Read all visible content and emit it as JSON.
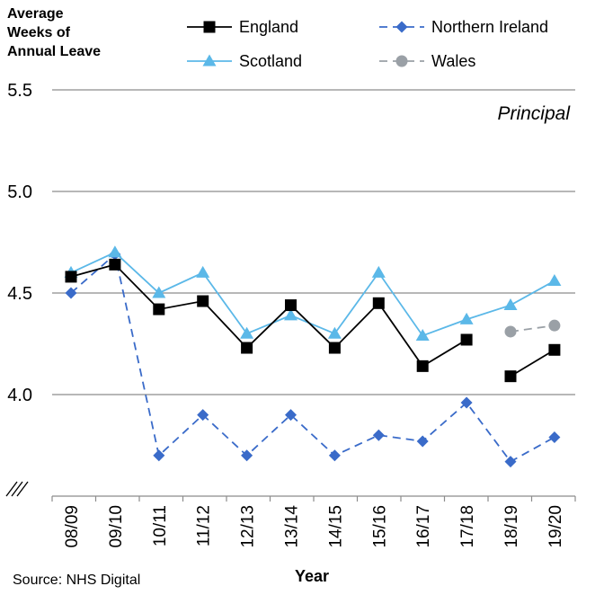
{
  "chart_data": {
    "type": "line",
    "ylabel_lines": [
      "Average",
      "Weeks of",
      "Annual Leave"
    ],
    "xlabel": "Year",
    "annotation": "Principal",
    "source": "Source: NHS Digital",
    "y_ticks": [
      "5.5",
      "5.0",
      "4.5",
      "4.0"
    ],
    "y_tick_values": [
      5.5,
      5.0,
      4.5,
      4.0
    ],
    "ylim": [
      3.5,
      5.5
    ],
    "axis_break": true,
    "grid": true,
    "legend_position": "top",
    "categories": [
      "08/09",
      "09/10",
      "10/11",
      "11/12",
      "12/13",
      "13/14",
      "14/15",
      "15/16",
      "16/17",
      "17/18",
      "18/19",
      "19/20"
    ],
    "series": [
      {
        "name": "England",
        "color": "#000000",
        "marker": "square",
        "dash": "solid",
        "values": [
          4.58,
          4.64,
          4.42,
          4.46,
          4.23,
          4.44,
          4.23,
          4.45,
          4.14,
          4.27,
          4.09,
          4.22
        ],
        "segments": [
          [
            0,
            9
          ],
          [
            10,
            11
          ]
        ]
      },
      {
        "name": "Northern Ireland",
        "color": "#3a6bc9",
        "marker": "diamond",
        "dash": "dashed",
        "values": [
          4.5,
          4.69,
          3.7,
          3.9,
          3.7,
          3.9,
          3.7,
          3.8,
          3.77,
          3.96,
          3.67,
          3.79
        ],
        "segments": [
          [
            0,
            11
          ]
        ]
      },
      {
        "name": "Scotland",
        "color": "#5bb8e8",
        "marker": "triangle",
        "dash": "solid",
        "values": [
          4.6,
          4.7,
          4.5,
          4.6,
          4.3,
          4.39,
          4.3,
          4.6,
          4.29,
          4.37,
          4.44,
          4.56
        ],
        "segments": [
          [
            0,
            11
          ]
        ]
      },
      {
        "name": "Wales",
        "color": "#9aa0a6",
        "marker": "circle",
        "dash": "dashed",
        "values": [
          null,
          null,
          null,
          null,
          null,
          null,
          null,
          null,
          null,
          null,
          4.31,
          4.34
        ],
        "segments": [
          [
            10,
            11
          ]
        ]
      }
    ]
  }
}
